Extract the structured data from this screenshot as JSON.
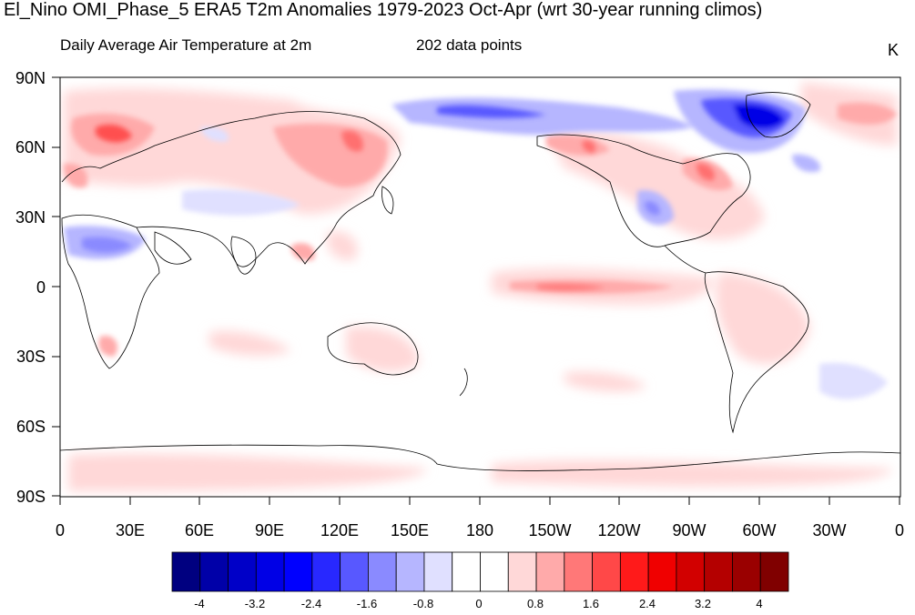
{
  "title": "El_Nino OMI_Phase_5 ERA5 T2m Anomalies 1979-2023 Oct-Apr (wrt 30-year running climos)",
  "subtitle_left": "Daily Average Air Temperature at 2m",
  "subtitle_center": "202 data points",
  "units": "K",
  "lat_labels": [
    "90N",
    "60N",
    "30N",
    "0",
    "30S",
    "60S",
    "90S"
  ],
  "lon_labels": [
    "0",
    "30E",
    "60E",
    "90E",
    "120E",
    "150E",
    "180",
    "150W",
    "120W",
    "90W",
    "60W",
    "30W",
    "0"
  ],
  "colorbar": {
    "labels": [
      "-4",
      "-3.2",
      "-2.4",
      "-1.6",
      "-0.8",
      "0",
      "0.8",
      "1.6",
      "2.4",
      "3.2",
      "4"
    ],
    "colors": [
      "#000080",
      "#0000a8",
      "#0000c8",
      "#0000e6",
      "#0000ff",
      "#2828ff",
      "#5858ff",
      "#8a8aff",
      "#b6b6ff",
      "#e0e0ff",
      "#ffffff",
      "#ffffff",
      "#ffd8d8",
      "#ffaaaa",
      "#ff7878",
      "#ff4848",
      "#ff1a1a",
      "#f00000",
      "#d20000",
      "#b40000",
      "#9a0000",
      "#800000"
    ]
  }
}
